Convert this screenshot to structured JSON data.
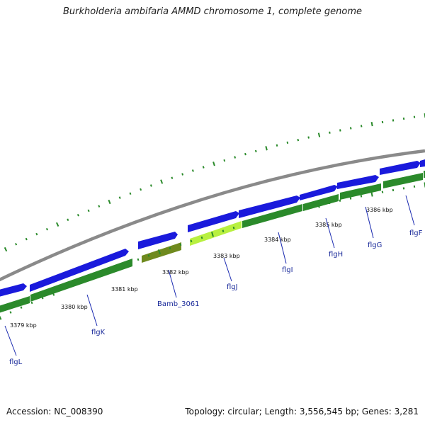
{
  "title": "Burkholderia ambifaria AMMD chromosome 1, complete genome",
  "footer": {
    "accession": "Accession: NC_008390",
    "summary": "Topology: circular; Length: 3,556,545 bp; Genes: 3,281"
  },
  "colors": {
    "backbone": "#8a8a8a",
    "forward_gene": "#1a1adc",
    "reverse_gene": "#2b8a2b",
    "highlight_gene": "#b8f040",
    "olive_gene": "#6f8a1e",
    "tick": "#2a8a2a",
    "label_line": "#1a2ab0"
  },
  "scale_labels": [
    "3379 kbp",
    "3380 kbp",
    "3381 kbp",
    "3382 kbp",
    "3383 kbp",
    "3384 kbp",
    "3385 kbp",
    "3386 kbp"
  ],
  "gene_labels": [
    "flgL",
    "flgK",
    "Bamb_3061",
    "flgJ",
    "flgI",
    "flgH",
    "flgG",
    "flgF"
  ]
}
